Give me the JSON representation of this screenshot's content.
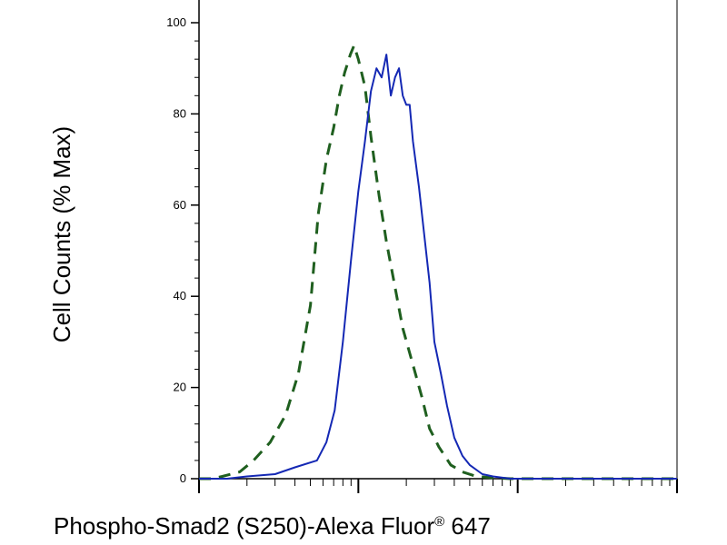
{
  "chart_data": {
    "type": "line",
    "title": "",
    "xlabel_parts": [
      "Phospho-Smad2 (S250)-Alexa Fluor",
      "®",
      " 647"
    ],
    "ylabel": "Cell Counts (% Max)",
    "x_scale": "log",
    "xlim": [
      1,
      1000
    ],
    "ylim": [
      0,
      100
    ],
    "y_ticks": [
      0,
      20,
      40,
      60,
      80,
      100
    ],
    "y_tick_labels": [
      "0",
      "20",
      "40",
      "60",
      "80",
      "100"
    ],
    "x_major_ticks": [
      1,
      10,
      100,
      1000
    ],
    "grid": false,
    "legend": "none",
    "series": [
      {
        "style": "dashed",
        "color": "#1f5f1f",
        "x": [
          1,
          1.2,
          1.4,
          1.8,
          2.2,
          2.8,
          3.5,
          4.2,
          5,
          5.6,
          6.3,
          7,
          7.6,
          8.2,
          8.9,
          9.4,
          10,
          11,
          12,
          13.5,
          15,
          17,
          19,
          22,
          25,
          28,
          32,
          38,
          45,
          55,
          70,
          90,
          120,
          200,
          400,
          1000
        ],
        "y": [
          0,
          0,
          0.5,
          1.5,
          4,
          8,
          14,
          23,
          38,
          58,
          70,
          77,
          84,
          89,
          93,
          95,
          92,
          86,
          75,
          62,
          52,
          42,
          33,
          25,
          18,
          11,
          7,
          3,
          1.5,
          0.5,
          0.2,
          0,
          0,
          0,
          0,
          0
        ]
      },
      {
        "style": "solid",
        "color": "#1428b4",
        "x": [
          1,
          1.5,
          2,
          3,
          4,
          5.5,
          6.3,
          7.1,
          8,
          9,
          10,
          11,
          12,
          13,
          14,
          15,
          16,
          17,
          18,
          19,
          20,
          21,
          22,
          24,
          26,
          28,
          30,
          33,
          36,
          40,
          45,
          50,
          60,
          70,
          90,
          150,
          400,
          1000
        ],
        "y": [
          0,
          0,
          0.5,
          1,
          2.5,
          4,
          8,
          15,
          30,
          48,
          63,
          74,
          85,
          90,
          88,
          93,
          84,
          88,
          90,
          84,
          82,
          82,
          74,
          64,
          53,
          43,
          30,
          23,
          16,
          9,
          5,
          3,
          1,
          0.5,
          0,
          0,
          0,
          0
        ]
      }
    ]
  }
}
